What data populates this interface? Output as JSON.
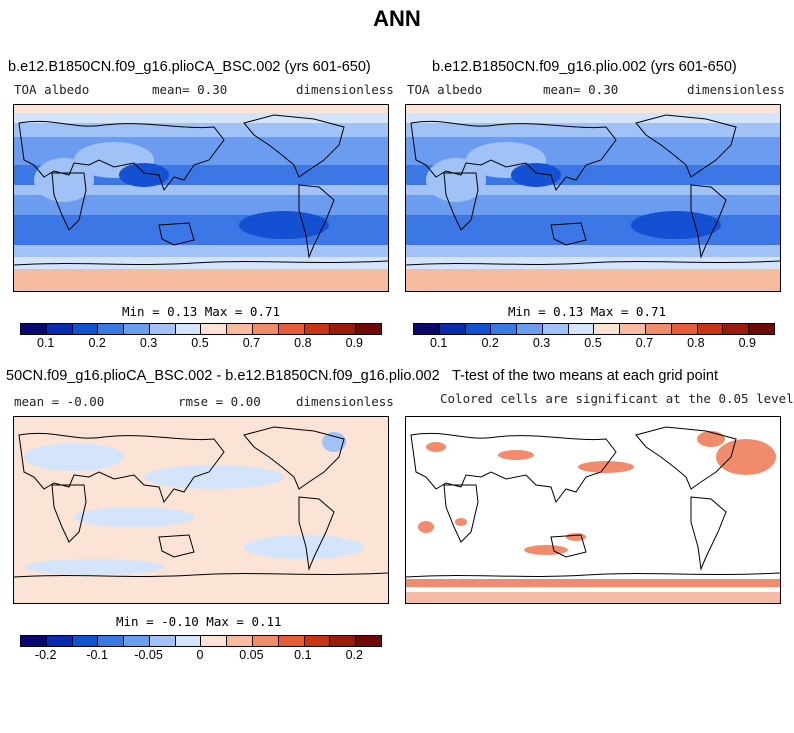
{
  "title": "ANN",
  "panels": {
    "p1": {
      "title": "b.e12.B1850CN.f09_g16.plioCA_BSC.002 (yrs 601-650)",
      "var": "TOA albedo",
      "mean": "mean=   0.30",
      "units": "dimensionless",
      "minmax": "Min =   0.13 Max =   0.71"
    },
    "p2": {
      "title": "b.e12.B1850CN.f09_g16.plio.002 (yrs 601-650)",
      "var": "TOA albedo",
      "mean": "mean=   0.30",
      "units": "dimensionless",
      "minmax": "Min =   0.13 Max =   0.71"
    },
    "p3": {
      "title": "50CN.f09_g16.plioCA_BSC.002 - b.e12.B1850CN.f09_g16.plio.002",
      "mean": "mean =  -0.00",
      "rmse": "rmse =   0.00",
      "units": "dimensionless",
      "minmax": "Min =  -0.10 Max =   0.11"
    },
    "p4": {
      "title": "T-test of the two means at each grid point",
      "subtitle": "Colored cells are significant at the 0.05 level"
    }
  },
  "colorbar_colors": [
    "#08086e",
    "#0a2bb0",
    "#1450d2",
    "#3b78e6",
    "#6b9cf0",
    "#a0c2f7",
    "#d4e5fb",
    "#fbe3d6",
    "#f7bba0",
    "#f08c6b",
    "#e85c3c",
    "#c93418",
    "#9c1a0c",
    "#6e0a05"
  ],
  "colorbar1_ticks": [
    "0.1",
    "0.2",
    "0.3",
    "0.5",
    "0.7",
    "0.8",
    "0.9"
  ],
  "colorbar2_ticks": [
    "-0.2",
    "-0.1",
    "-0.05",
    "0",
    "0.05",
    "0.1",
    "0.2"
  ]
}
